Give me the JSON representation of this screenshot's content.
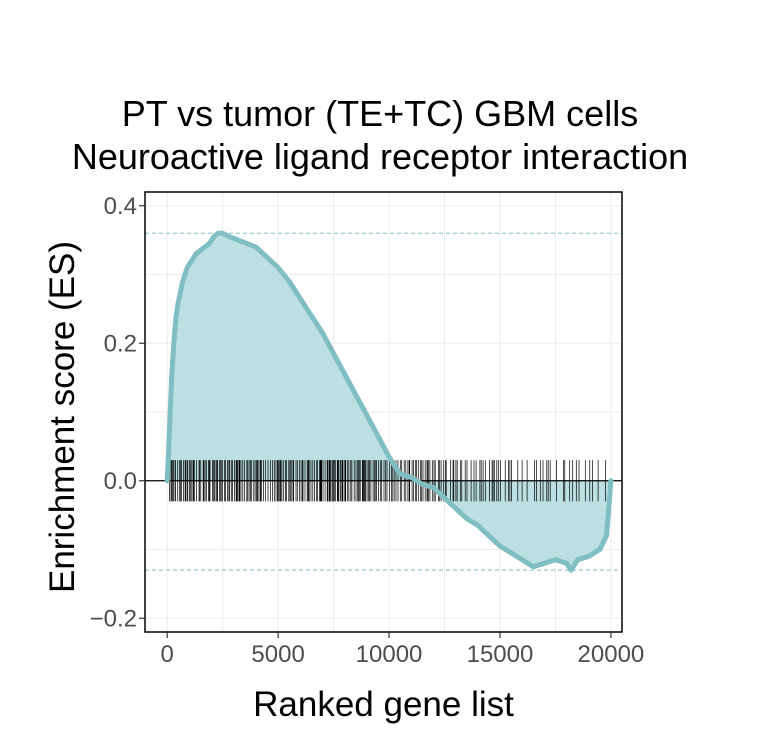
{
  "chart_data": {
    "type": "line",
    "title": "PT vs tumor (TE+TC) GBM cells",
    "subtitle": "Neuroactive ligand receptor interaction",
    "xlabel": "Ranked gene list",
    "ylabel": "Enrichment score (ES)",
    "xlim": [
      -1000,
      20500
    ],
    "ylim": [
      -0.22,
      0.42
    ],
    "xticks": [
      0,
      5000,
      10000,
      15000,
      20000
    ],
    "xtick_labels": [
      "0",
      "5000",
      "10000",
      "15000",
      "20000"
    ],
    "yticks": [
      -0.2,
      0.0,
      0.2,
      0.4
    ],
    "ytick_labels": [
      "−0.2",
      "0.0",
      "0.2",
      "0.4"
    ],
    "grid": true,
    "line_color": "#7fbfc3",
    "fill_color": "#bcdfe1",
    "max_es": 0.36,
    "min_es": -0.13,
    "series": [
      {
        "x": [
          0,
          100,
          200,
          300,
          400,
          500,
          700,
          900,
          1100,
          1300,
          1500,
          1700,
          1900,
          2100,
          2300,
          2500,
          2800,
          3200,
          3600,
          4000,
          4500,
          5000,
          5500,
          6000,
          6500,
          7000,
          7500,
          8000,
          8500,
          9000,
          9500,
          10000,
          10500,
          11000,
          11500,
          12000,
          12500,
          13000,
          13500,
          14000,
          14500,
          15000,
          15500,
          16000,
          16500,
          17000,
          17500,
          18000,
          18200,
          18500,
          19000,
          19500,
          19800,
          20000
        ],
        "y": [
          0.0,
          0.07,
          0.15,
          0.2,
          0.24,
          0.26,
          0.29,
          0.31,
          0.32,
          0.33,
          0.335,
          0.34,
          0.345,
          0.355,
          0.36,
          0.36,
          0.355,
          0.35,
          0.345,
          0.34,
          0.325,
          0.31,
          0.29,
          0.265,
          0.24,
          0.215,
          0.185,
          0.155,
          0.125,
          0.095,
          0.065,
          0.035,
          0.01,
          0.005,
          -0.005,
          -0.01,
          -0.025,
          -0.04,
          -0.055,
          -0.065,
          -0.08,
          -0.095,
          -0.105,
          -0.115,
          -0.125,
          -0.12,
          -0.115,
          -0.12,
          -0.13,
          -0.115,
          -0.11,
          -0.1,
          -0.08,
          0.0
        ]
      }
    ]
  }
}
